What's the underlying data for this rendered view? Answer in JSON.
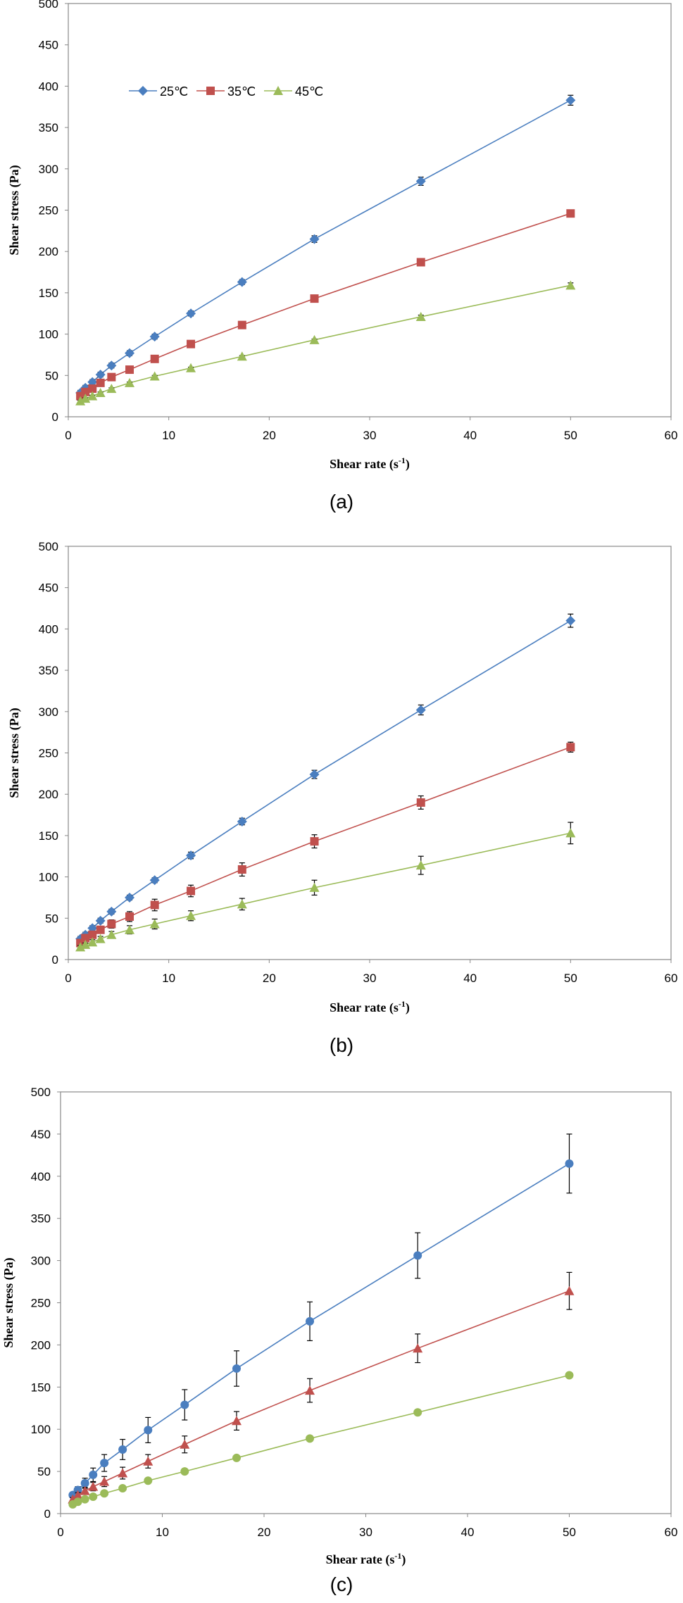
{
  "chart_data": [
    {
      "type": "line",
      "title": "",
      "caption": "(a)",
      "xlabel": "Shear rate (s",
      "xlabel_sup": "-1",
      "xlabel_end": ")",
      "ylabel": "Shear stress (Pa)",
      "xlim": [
        0,
        60
      ],
      "ylim": [
        0,
        500
      ],
      "x_ticks": [
        0,
        10,
        20,
        30,
        40,
        50,
        60
      ],
      "y_ticks": [
        0,
        50,
        100,
        150,
        200,
        250,
        300,
        350,
        400,
        450,
        500
      ],
      "legend_position": "top-left",
      "x": [
        1.2,
        1.7,
        2.4,
        3.2,
        4.3,
        6.1,
        8.6,
        12.2,
        17.3,
        24.5,
        35.1,
        50.0
      ],
      "series": [
        {
          "name": "25℃",
          "color": "#4a7ebf",
          "marker": "diamond",
          "values": [
            29,
            35,
            42,
            51,
            62,
            77,
            97,
            125,
            163,
            215,
            285,
            383
          ],
          "errors": [
            3,
            3,
            3,
            3,
            3,
            3,
            3,
            3,
            3,
            4,
            5,
            6
          ]
        },
        {
          "name": "35℃",
          "color": "#c0504d",
          "marker": "square",
          "values": [
            25,
            30,
            34,
            41,
            48,
            57,
            70,
            88,
            111,
            143,
            187,
            246
          ],
          "errors": [
            2,
            2,
            2,
            2,
            2,
            2,
            2,
            2,
            2,
            2,
            2,
            3
          ]
        },
        {
          "name": "45℃",
          "color": "#9bbb59",
          "marker": "triangle",
          "values": [
            19,
            22,
            25,
            29,
            34,
            41,
            49,
            59,
            73,
            93,
            121,
            159
          ],
          "errors": [
            1,
            1,
            1,
            1,
            1,
            1,
            1,
            1,
            1,
            1,
            2,
            3
          ]
        }
      ]
    },
    {
      "type": "line",
      "title": "",
      "caption": "(b)",
      "xlabel": "Shear rate (s",
      "xlabel_sup": "-1",
      "xlabel_end": ")",
      "ylabel": "Shear stress (Pa)",
      "xlim": [
        0,
        60
      ],
      "ylim": [
        0,
        500
      ],
      "x_ticks": [
        0,
        10,
        20,
        30,
        40,
        50,
        60
      ],
      "y_ticks": [
        0,
        50,
        100,
        150,
        200,
        250,
        300,
        350,
        400,
        450,
        500
      ],
      "x": [
        1.2,
        1.7,
        2.4,
        3.2,
        4.3,
        6.1,
        8.6,
        12.2,
        17.3,
        24.5,
        35.1,
        50.0
      ],
      "series": [
        {
          "name": "",
          "color": "#4a7ebf",
          "marker": "diamond",
          "values": [
            25,
            30,
            38,
            47,
            58,
            75,
            96,
            126,
            167,
            224,
            302,
            410
          ],
          "errors": [
            3,
            3,
            3,
            3,
            3,
            3,
            3,
            4,
            4,
            5,
            6,
            8
          ]
        },
        {
          "name": "",
          "color": "#c0504d",
          "marker": "square",
          "values": [
            20,
            26,
            30,
            36,
            43,
            52,
            66,
            83,
            109,
            143,
            190,
            257
          ],
          "errors": [
            2,
            2,
            3,
            4,
            5,
            6,
            7,
            7,
            8,
            8,
            8,
            6
          ]
        },
        {
          "name": "",
          "color": "#9bbb59",
          "marker": "triangle",
          "values": [
            15,
            18,
            21,
            25,
            30,
            36,
            43,
            53,
            67,
            87,
            114,
            153
          ],
          "errors": [
            2,
            2,
            3,
            3,
            4,
            5,
            6,
            6,
            7,
            9,
            11,
            13
          ]
        }
      ]
    },
    {
      "type": "line",
      "title": "",
      "caption": "(c)",
      "xlabel": "Shear rate (s",
      "xlabel_sup": "-1",
      "xlabel_end": ")",
      "ylabel": "Shear stress (Pa)",
      "xlim": [
        0,
        60
      ],
      "ylim": [
        0,
        500
      ],
      "x_ticks": [
        0,
        10,
        20,
        30,
        40,
        50,
        60
      ],
      "y_ticks": [
        0,
        50,
        100,
        150,
        200,
        250,
        300,
        350,
        400,
        450,
        500
      ],
      "x": [
        1.2,
        1.7,
        2.4,
        3.2,
        4.3,
        6.1,
        8.6,
        12.2,
        17.3,
        24.5,
        35.1,
        50.0
      ],
      "series": [
        {
          "name": "",
          "color": "#4a7ebf",
          "marker": "circle",
          "values": [
            22,
            28,
            36,
            46,
            60,
            76,
            99,
            129,
            172,
            228,
            306,
            415
          ],
          "errors": [
            3,
            4,
            6,
            8,
            10,
            12,
            15,
            18,
            21,
            23,
            27,
            35
          ]
        },
        {
          "name": "",
          "color": "#c0504d",
          "marker": "triangle",
          "values": [
            17,
            22,
            27,
            32,
            38,
            48,
            62,
            82,
            110,
            146,
            196,
            264
          ],
          "errors": [
            2,
            3,
            4,
            5,
            6,
            7,
            8,
            10,
            11,
            14,
            17,
            22
          ]
        },
        {
          "name": "",
          "color": "#9bbb59",
          "marker": "circle",
          "values": [
            11,
            14,
            17,
            20,
            24,
            30,
            39,
            50,
            66,
            89,
            120,
            164
          ],
          "errors": [
            0,
            0,
            0,
            0,
            0,
            0,
            0,
            0,
            0,
            0,
            0,
            0
          ]
        }
      ]
    }
  ]
}
